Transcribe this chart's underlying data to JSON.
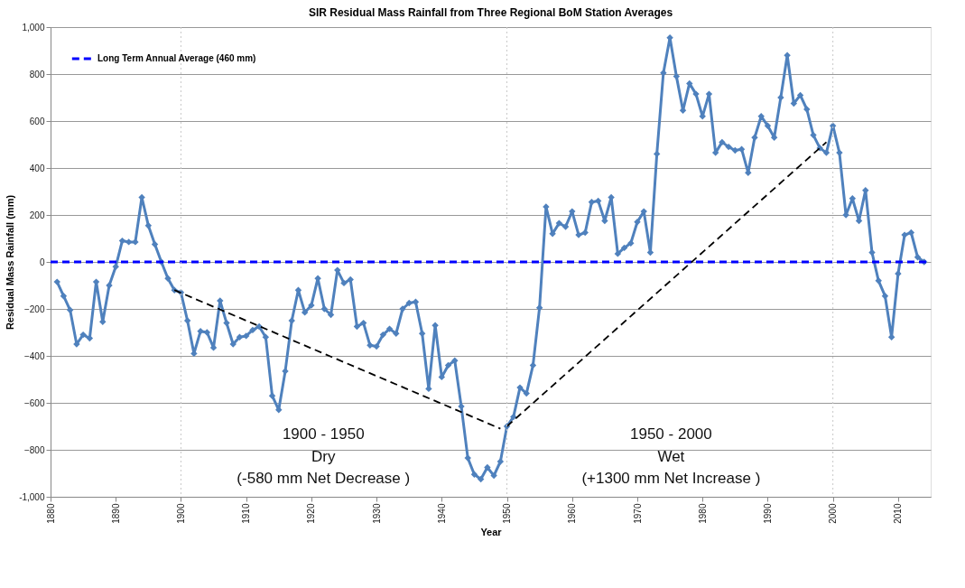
{
  "chart_data": {
    "type": "line",
    "title": "SIR Residual Mass Rainfall from Three Regional BoM Station Averages",
    "xlabel": "Year",
    "ylabel": "Residual Mass Rainfall  (mm)",
    "xlim": [
      1880,
      2015
    ],
    "xticks": [
      1880,
      1890,
      1900,
      1910,
      1920,
      1930,
      1940,
      1950,
      1960,
      1970,
      1980,
      1990,
      2000,
      2010
    ],
    "ylim": [
      -1000,
      1000
    ],
    "yticks": [
      {
        "value": -1000,
        "label": "-1,000"
      },
      -800,
      -600,
      -400,
      -200,
      0,
      200,
      400,
      600,
      800,
      {
        "value": 1000,
        "label": "1,000"
      }
    ],
    "grid": "y",
    "legend": "top left",
    "marker": "diamond",
    "line_style": "solid",
    "series": [
      {
        "color": "#4f81bd",
        "x": [
          1881,
          1882,
          1883,
          1884,
          1885,
          1886,
          1887,
          1888,
          1889,
          1890,
          1891,
          1892,
          1893,
          1894,
          1895,
          1896,
          1897,
          1898,
          1899,
          1900,
          1901,
          1902,
          1903,
          1904,
          1905,
          1906,
          1907,
          1908,
          1909,
          1910,
          1911,
          1912,
          1913,
          1914,
          1915,
          1916,
          1917,
          1918,
          1919,
          1920,
          1921,
          1922,
          1923,
          1924,
          1925,
          1926,
          1927,
          1928,
          1929,
          1930,
          1931,
          1932,
          1933,
          1934,
          1935,
          1936,
          1937,
          1938,
          1939,
          1940,
          1941,
          1942,
          1943,
          1944,
          1945,
          1946,
          1947,
          1948,
          1949,
          1950,
          1951,
          1952,
          1953,
          1954,
          1955,
          1956,
          1957,
          1958,
          1959,
          1960,
          1961,
          1962,
          1963,
          1964,
          1965,
          1966,
          1967,
          1968,
          1969,
          1970,
          1971,
          1972,
          1973,
          1974,
          1975,
          1976,
          1977,
          1978,
          1979,
          1980,
          1981,
          1982,
          1983,
          1984,
          1985,
          1986,
          1987,
          1988,
          1989,
          1990,
          1991,
          1992,
          1993,
          1994,
          1995,
          1996,
          1997,
          1998,
          1999,
          2000,
          2001,
          2002,
          2003,
          2004,
          2005,
          2006,
          2007,
          2008,
          2009,
          2010,
          2011,
          2012,
          2013,
          2014
        ],
        "values": [
          -85,
          -145,
          -205,
          -350,
          -310,
          -325,
          -85,
          -255,
          -100,
          -20,
          90,
          85,
          85,
          275,
          155,
          75,
          0,
          -70,
          -120,
          -130,
          -250,
          -390,
          -295,
          -300,
          -365,
          -165,
          -260,
          -350,
          -320,
          -315,
          -290,
          -275,
          -320,
          -570,
          -630,
          -465,
          -250,
          -120,
          -215,
          -185,
          -70,
          -200,
          -225,
          -35,
          -90,
          -75,
          -275,
          -260,
          -355,
          -360,
          -310,
          -285,
          -305,
          -200,
          -175,
          -170,
          -305,
          -540,
          -270,
          -490,
          -440,
          -420,
          -615,
          -835,
          -905,
          -925,
          -875,
          -910,
          -850,
          -700,
          -660,
          -535,
          -560,
          -440,
          -195,
          235,
          120,
          165,
          150,
          215,
          115,
          125,
          255,
          260,
          175,
          275,
          35,
          60,
          80,
          170,
          215,
          40,
          460,
          805,
          955,
          790,
          645,
          760,
          715,
          620,
          715,
          465,
          510,
          490,
          475,
          480,
          380,
          530,
          620,
          580,
          530,
          700,
          880,
          675,
          710,
          650,
          540,
          485,
          465,
          580,
          465,
          200,
          270,
          175,
          305,
          40,
          -80,
          -145,
          -320,
          -50,
          115,
          125,
          20,
          0
        ]
      },
      {
        "name": "Long Term Annual Average (460 mm)",
        "color": "#0000ff",
        "line_style": "dashed",
        "marker": "none",
        "x": [
          1880,
          2015
        ],
        "values": [
          0,
          0
        ]
      },
      {
        "type": "line",
        "color": "#000000",
        "line_style": "dashed",
        "marker": "none",
        "x": [
          1899,
          1949
        ],
        "values": [
          -120,
          -710
        ]
      },
      {
        "type": "line",
        "color": "#000000",
        "line_style": "dashed",
        "marker": "none",
        "x": [
          1950,
          1999
        ],
        "values": [
          -700,
          510
        ]
      }
    ],
    "ref_lines": [
      {
        "axis": "x",
        "value": 1900,
        "color": "#c8c8c8",
        "line_style": "dotted"
      },
      {
        "axis": "x",
        "value": 1950,
        "color": "#c8c8c8",
        "line_style": "dotted"
      },
      {
        "axis": "x",
        "value": 2000,
        "color": "#c8c8c8",
        "line_style": "dotted"
      }
    ],
    "annotations": [
      "1900 - 1950",
      "Dry",
      "(-580 mm Net Decrease )",
      "1950 - 2000",
      "Wet",
      "(+1300 mm Net Increase )"
    ]
  }
}
